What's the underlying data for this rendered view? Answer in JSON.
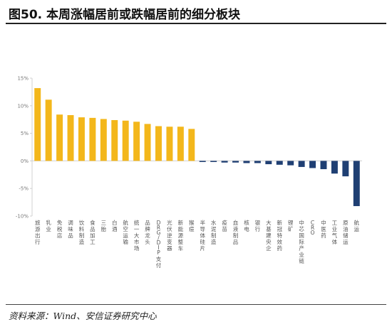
{
  "figure": {
    "title": "图50. 本周涨幅居前或跌幅居前的细分板块",
    "source": "资料来源：Wind、安信证券研究中心"
  },
  "colors": {
    "positive": "#F3B71B",
    "negative": "#1F3F73",
    "axis": "#d0d0d0"
  },
  "chart_data": {
    "type": "bar",
    "title": "",
    "xlabel": "",
    "ylabel": "",
    "ylim": [
      -10,
      15
    ],
    "yticks": [
      15,
      10,
      5,
      0,
      -5,
      -10
    ],
    "ytick_labels": [
      "15%",
      "10%",
      "5%",
      "0%",
      "-5%",
      "-10%"
    ],
    "unit": "%",
    "grid": false,
    "legend": "none",
    "categories": [
      "旅游出行",
      "乳业",
      "免税店",
      "调味品",
      "饮料制造",
      "食品加工",
      "三胎",
      "白酒",
      "航空运输",
      "统一大市场",
      "品牌龙头",
      "DRG/DIP支付",
      "光伏逆变器",
      "新能源整车",
      "猴痘",
      "半导体硅片",
      "水泥制造",
      "疫苗",
      "血液制品",
      "核电",
      "银行",
      "大基建央企",
      "新冠特效药",
      "锂矿",
      "中芯国际产业链",
      "CRO",
      "中医药",
      "工业气体",
      "原油储运",
      "航运"
    ],
    "values": [
      13.2,
      11.1,
      8.4,
      8.3,
      7.9,
      7.8,
      7.6,
      7.4,
      7.3,
      7.1,
      6.7,
      6.3,
      6.2,
      6.2,
      5.8,
      -0.2,
      -0.2,
      -0.3,
      -0.3,
      -0.4,
      -0.4,
      -0.6,
      -0.7,
      -0.8,
      -1.1,
      -1.3,
      -1.5,
      -2.3,
      -2.8,
      -8.2
    ]
  }
}
